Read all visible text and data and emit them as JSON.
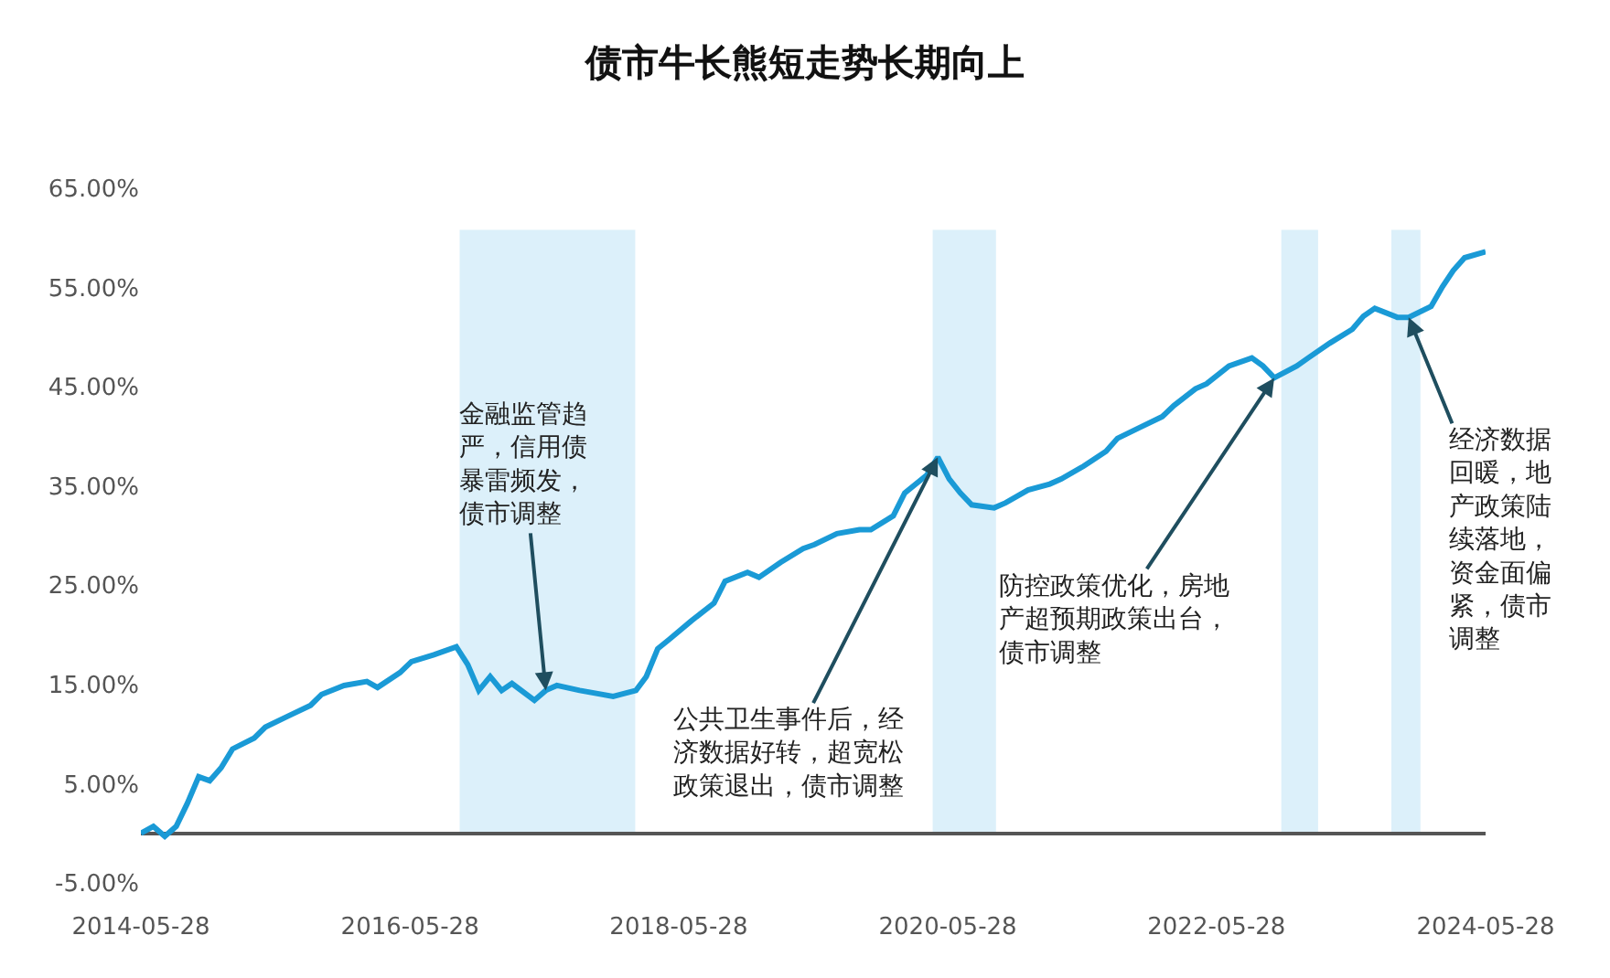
{
  "chart_data": {
    "type": "line",
    "title": "债市牛长熊短走势长期向上",
    "x": [
      "2014-05-28",
      "2014-07",
      "2014-08",
      "2014-09",
      "2014-10",
      "2014-11",
      "2014-12",
      "2015-01",
      "2015-02",
      "2015-04",
      "2015-05",
      "2015-07",
      "2015-09",
      "2015-10",
      "2015-12",
      "2016-02",
      "2016-03",
      "2016-05",
      "2016-06",
      "2016-08",
      "2016-10",
      "2016-11",
      "2016-12",
      "2017-01",
      "2017-02",
      "2017-03",
      "2017-05",
      "2017-06",
      "2017-07",
      "2017-09",
      "2017-12",
      "2018-02",
      "2018-03",
      "2018-04",
      "2018-05",
      "2018-07",
      "2018-09",
      "2018-10",
      "2018-12",
      "2019-01",
      "2019-03",
      "2019-05",
      "2019-06",
      "2019-08",
      "2019-10",
      "2019-11",
      "2020-01",
      "2020-02",
      "2020-04",
      "2020-05",
      "2020-06",
      "2020-07",
      "2020-08",
      "2020-10",
      "2020-11",
      "2021-01",
      "2021-03",
      "2021-04",
      "2021-06",
      "2021-08",
      "2021-09",
      "2021-11",
      "2022-01",
      "2022-02",
      "2022-04",
      "2022-05",
      "2022-07",
      "2022-09",
      "2022-10",
      "2022-11",
      "2023-01",
      "2023-02",
      "2023-04",
      "2023-06",
      "2023-07",
      "2023-08",
      "2023-10",
      "2023-11",
      "2024-01",
      "2024-02",
      "2024-03",
      "2024-04",
      "2024-05-28"
    ],
    "series": [
      {
        "color": "#1a9ad6",
        "values": [
          0,
          0.7,
          -0.3,
          0.7,
          3.0,
          5.7,
          5.3,
          6.6,
          8.5,
          9.6,
          10.7,
          11.8,
          12.9,
          14.0,
          14.9,
          15.3,
          14.7,
          16.2,
          17.3,
          18.0,
          18.8,
          17.0,
          14.4,
          15.8,
          14.4,
          15.1,
          13.4,
          14.4,
          14.9,
          14.4,
          13.8,
          14.4,
          15.8,
          18.6,
          19.5,
          21.4,
          23.2,
          25.4,
          26.3,
          25.8,
          27.3,
          28.7,
          29.1,
          30.2,
          30.6,
          30.6,
          32.0,
          34.3,
          36.1,
          37.9,
          35.7,
          34.3,
          33.1,
          32.8,
          33.3,
          34.6,
          35.2,
          35.7,
          37.0,
          38.5,
          39.8,
          40.9,
          42.0,
          43.1,
          44.8,
          45.3,
          47.1,
          47.9,
          47.1,
          45.9,
          47.1,
          47.9,
          49.4,
          50.8,
          52.1,
          52.9,
          52.0,
          52.0,
          53.1,
          55.1,
          56.7,
          58.0,
          58.6
        ]
      }
    ],
    "xlim": [
      "2014-05-28",
      "2024-05-28"
    ],
    "xticks": [
      {
        "value": "2014-05-28",
        "label": "2014-05-28"
      },
      {
        "value": "2016-05-28",
        "label": "2016-05-28"
      },
      {
        "value": "2018-05-28",
        "label": "2018-05-28"
      },
      {
        "value": "2020-05-28",
        "label": "2020-05-28"
      },
      {
        "value": "2022-05-28",
        "label": "2022-05-28"
      },
      {
        "value": "2024-05-28",
        "label": "2024-05-28"
      }
    ],
    "ylim": [
      -5,
      65
    ],
    "yticks": [
      {
        "value": -5,
        "label": "-5.00%"
      },
      {
        "value": 5,
        "label": "5.00%"
      },
      {
        "value": 15,
        "label": "15.00%"
      },
      {
        "value": 25,
        "label": "25.00%"
      },
      {
        "value": 35,
        "label": "35.00%"
      },
      {
        "value": 45,
        "label": "45.00%"
      },
      {
        "value": 55,
        "label": "55.00%"
      },
      {
        "value": 65,
        "label": "65.00%"
      }
    ],
    "grid": false,
    "marker": "none",
    "line_style": "solid",
    "bands": [
      {
        "axis": "x",
        "from": "2016-10-10",
        "to": "2018-01-30",
        "color": "#dcf0fa"
      },
      {
        "axis": "x",
        "from": "2020-04-17",
        "to": "2020-10-06",
        "color": "#dcf0fa"
      },
      {
        "axis": "x",
        "from": "2022-11-20",
        "to": "2023-02-28",
        "color": "#dcf0fa"
      },
      {
        "axis": "x",
        "from": "2023-09-15",
        "to": "2023-12-03",
        "color": "#dcf0fa"
      }
    ],
    "annotations": [
      {
        "text": "金融监管趋严，信用债暴雷频发，债市调整",
        "x": "2017-06",
        "y": 14.4
      },
      {
        "text": "公共卫生事件后，经济数据好转，超宽松政策退出，债市调整",
        "x": "2020-05",
        "y": 37.9
      },
      {
        "text": "防控政策优化，房地产超预期政策出台，债市调整",
        "x": "2022-11",
        "y": 45.9
      },
      {
        "text": "经济数据回暖，地产政策陆续落地，资金面偏紧，债市调整",
        "x": "2023-11",
        "y": 52.0
      }
    ]
  }
}
